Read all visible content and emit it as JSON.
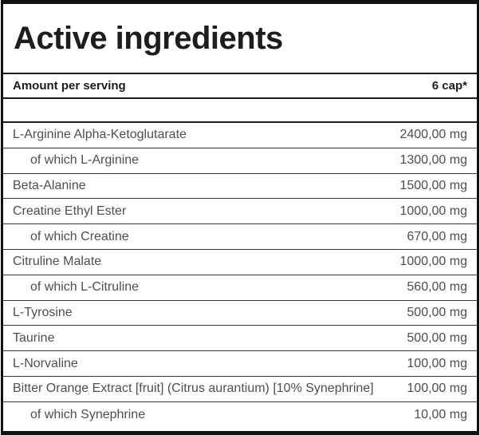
{
  "title": "Active ingredients",
  "table": {
    "header": {
      "label_col": "Amount per serving",
      "amount_col": "6 cap*"
    },
    "rows": [
      {
        "name": "L-Arginine Alpha-Ketoglutarate",
        "amount": "2400,00 mg",
        "sub": false
      },
      {
        "name": "of which L-Arginine",
        "amount": "1300,00 mg",
        "sub": true
      },
      {
        "name": "Beta-Alanine",
        "amount": "1500,00 mg",
        "sub": false
      },
      {
        "name": "Creatine Ethyl Ester",
        "amount": "1000,00 mg",
        "sub": false
      },
      {
        "name": "of which Creatine",
        "amount": "670,00 mg",
        "sub": true
      },
      {
        "name": "Citruline Malate",
        "amount": "1000,00 mg",
        "sub": false
      },
      {
        "name": "of which L-Citruline",
        "amount": "560,00 mg",
        "sub": true
      },
      {
        "name": "L-Tyrosine",
        "amount": "500,00 mg",
        "sub": false
      },
      {
        "name": "Taurine",
        "amount": "500,00 mg",
        "sub": false
      },
      {
        "name": "L-Norvaline",
        "amount": "100,00 mg",
        "sub": false
      },
      {
        "name": "Bitter Orange Extract [fruit] (Citrus aurantium) [10% Synephrine]",
        "amount": "100,00 mg",
        "sub": false
      },
      {
        "name": "of which Synephrine",
        "amount": "10,00 mg",
        "sub": true
      }
    ]
  },
  "colors": {
    "heading_text": "#1d1d1b",
    "row_text": "#4e4e4e",
    "outer_border": "#121212",
    "heavy_rule": "#1d1d1b",
    "thin_rule": "#383838",
    "background": "#ffffff"
  }
}
